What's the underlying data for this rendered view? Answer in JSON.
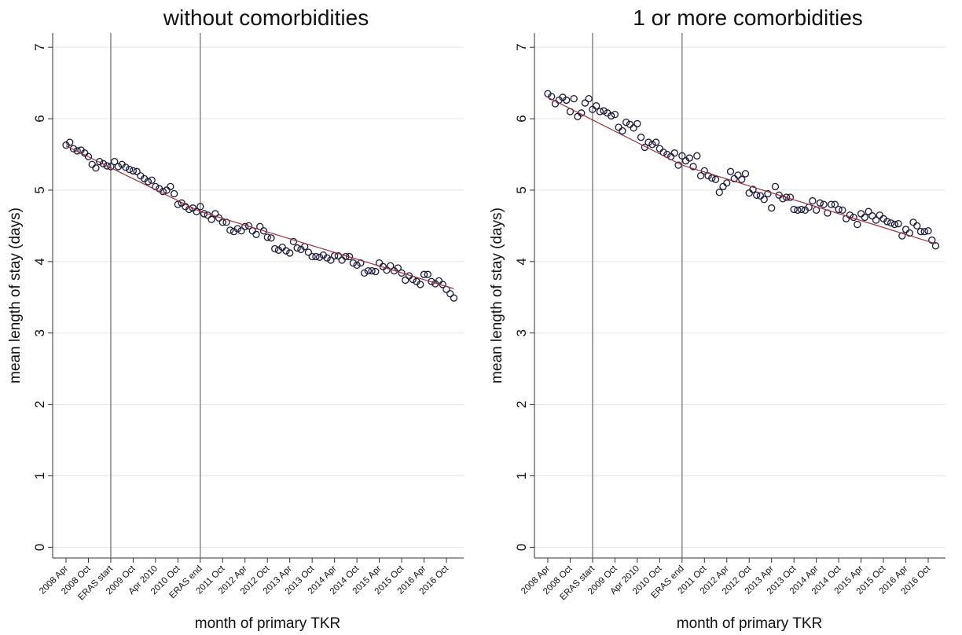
{
  "chart_data": [
    {
      "type": "scatter",
      "title": "without comorbidities",
      "x_label": "month of primary TKR",
      "y_label": "mean length of stay (days)",
      "categories": [
        "2008 Apr",
        null,
        null,
        null,
        null,
        null,
        "2008 Oct",
        null,
        null,
        null,
        null,
        null,
        "ERAS start",
        null,
        null,
        null,
        null,
        null,
        "2009 Oct",
        null,
        null,
        null,
        null,
        null,
        "Apr 2010",
        null,
        null,
        null,
        null,
        null,
        "2010 Oct",
        null,
        null,
        null,
        null,
        null,
        "ERAS end",
        null,
        null,
        null,
        null,
        null,
        "2011 Oct",
        null,
        null,
        null,
        null,
        null,
        "2012 Apr",
        null,
        null,
        null,
        null,
        null,
        "2012 Oct",
        null,
        null,
        null,
        null,
        null,
        "2013 Apr",
        null,
        null,
        null,
        null,
        null,
        "2013 Oct",
        null,
        null,
        null,
        null,
        null,
        "2014 Apr",
        null,
        null,
        null,
        null,
        null,
        "2014 Oct",
        null,
        null,
        null,
        null,
        null,
        "2015 Apr",
        null,
        null,
        null,
        null,
        null,
        "2015 Oct",
        null,
        null,
        null,
        null,
        null,
        "2016 Apr",
        null,
        null,
        null,
        null,
        null,
        "2016 Oct",
        null,
        null
      ],
      "values": [
        5.63,
        5.67,
        5.58,
        5.55,
        5.56,
        5.52,
        5.47,
        5.36,
        5.31,
        5.4,
        5.37,
        5.34,
        5.33,
        5.4,
        5.33,
        5.36,
        5.32,
        5.29,
        5.27,
        5.26,
        5.2,
        5.16,
        5.12,
        5.14,
        5.05,
        5.02,
        4.98,
        5.0,
        5.05,
        4.95,
        4.8,
        4.82,
        4.77,
        4.73,
        4.75,
        4.7,
        4.77,
        4.67,
        4.65,
        4.59,
        4.67,
        4.61,
        4.55,
        4.55,
        4.44,
        4.42,
        4.46,
        4.43,
        4.49,
        4.5,
        4.43,
        4.38,
        4.49,
        4.43,
        4.34,
        4.33,
        4.18,
        4.16,
        4.2,
        4.15,
        4.12,
        4.28,
        4.19,
        4.17,
        4.21,
        4.13,
        4.07,
        4.07,
        4.06,
        4.09,
        4.05,
        4.02,
        4.08,
        4.08,
        4.02,
        4.07,
        4.07,
        3.98,
        3.95,
        3.98,
        3.84,
        3.87,
        3.87,
        3.86,
        3.98,
        3.93,
        3.88,
        3.94,
        3.87,
        3.91,
        3.84,
        3.74,
        3.8,
        3.75,
        3.72,
        3.68,
        3.82,
        3.82,
        3.72,
        3.69,
        3.73,
        3.68,
        3.61,
        3.55,
        3.49
      ],
      "color": "#1a1a3a",
      "fit": {
        "x": [
          0,
          36,
          104
        ],
        "values": [
          5.62,
          4.7,
          3.62
        ],
        "color": "#a0303a"
      },
      "vlines": [
        12,
        36
      ],
      "ylim": [
        -0.15,
        7.2
      ],
      "yticks": [
        0,
        1,
        2,
        3,
        4,
        5,
        6,
        7
      ],
      "grid": true
    },
    {
      "type": "scatter",
      "title": "1 or more comorbidities",
      "x_label": "month of primary TKR",
      "y_label": "mean length of stay (days)",
      "categories": [
        "2008 Apr",
        null,
        null,
        null,
        null,
        null,
        "2008 Oct",
        null,
        null,
        null,
        null,
        null,
        "ERAS start",
        null,
        null,
        null,
        null,
        null,
        "2009 Oct",
        null,
        null,
        null,
        null,
        null,
        "Apr 2010",
        null,
        null,
        null,
        null,
        null,
        "2010 Oct",
        null,
        null,
        null,
        null,
        null,
        "ERAS end",
        null,
        null,
        null,
        null,
        null,
        "2011 Oct",
        null,
        null,
        null,
        null,
        null,
        "2012 Apr",
        null,
        null,
        null,
        null,
        null,
        "2012 Oct",
        null,
        null,
        null,
        null,
        null,
        "2013 Apr",
        null,
        null,
        null,
        null,
        null,
        "2013 Oct",
        null,
        null,
        null,
        null,
        null,
        "2014 Apr",
        null,
        null,
        null,
        null,
        null,
        "2014 Oct",
        null,
        null,
        null,
        null,
        null,
        "2015 Apr",
        null,
        null,
        null,
        null,
        null,
        "2015 Oct",
        null,
        null,
        null,
        null,
        null,
        "2016 Apr",
        null,
        null,
        null,
        null,
        null,
        "2016 Oct",
        null,
        null
      ],
      "values": [
        6.35,
        6.31,
        6.21,
        6.26,
        6.3,
        6.26,
        6.1,
        6.28,
        6.03,
        6.08,
        6.22,
        6.28,
        6.13,
        6.18,
        6.1,
        6.11,
        6.08,
        6.04,
        6.06,
        5.88,
        5.83,
        5.95,
        5.92,
        5.87,
        5.93,
        5.74,
        5.6,
        5.67,
        5.64,
        5.67,
        5.58,
        5.53,
        5.5,
        5.47,
        5.52,
        5.35,
        5.48,
        5.41,
        5.45,
        5.33,
        5.48,
        5.2,
        5.27,
        5.2,
        5.17,
        5.15,
        4.97,
        5.05,
        5.1,
        5.26,
        5.16,
        5.21,
        5.15,
        5.23,
        4.96,
        5.01,
        4.93,
        4.92,
        4.87,
        4.95,
        4.75,
        5.05,
        4.93,
        4.88,
        4.9,
        4.9,
        4.73,
        4.72,
        4.73,
        4.72,
        4.76,
        4.85,
        4.72,
        4.82,
        4.8,
        4.68,
        4.8,
        4.8,
        4.73,
        4.72,
        4.6,
        4.65,
        4.62,
        4.52,
        4.67,
        4.62,
        4.7,
        4.64,
        4.58,
        4.65,
        4.6,
        4.56,
        4.54,
        4.52,
        4.53,
        4.36,
        4.45,
        4.4,
        4.55,
        4.5,
        4.42,
        4.42,
        4.43,
        4.3,
        4.22
      ],
      "color": "#1a1a3a",
      "fit": {
        "x": [
          0,
          36,
          104
        ],
        "values": [
          6.3,
          5.35,
          4.25
        ],
        "color": "#a0303a"
      },
      "vlines": [
        12,
        36
      ],
      "ylim": [
        -0.15,
        7.2
      ],
      "yticks": [
        0,
        1,
        2,
        3,
        4,
        5,
        6,
        7
      ],
      "grid": true
    }
  ]
}
